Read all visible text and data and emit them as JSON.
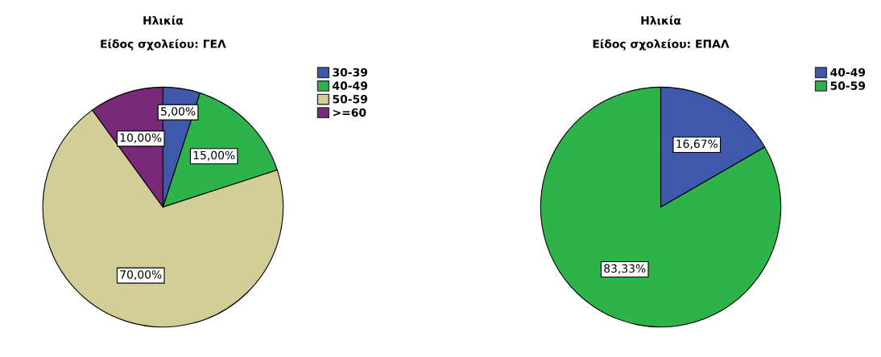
{
  "chart_data": [
    {
      "type": "pie",
      "title": "Ηλικία",
      "subtitle": "Είδος σχολείου: ΓΕΛ",
      "categories": [
        "30-39",
        "40-49",
        "50-59",
        ">=60"
      ],
      "values": [
        5,
        15,
        70,
        10
      ],
      "colors": [
        "#3e58ac",
        "#2db34a",
        "#d3ce97",
        "#79287a"
      ],
      "value_labels": [
        "5,00%",
        "15,00%",
        "70,00%",
        "10,00%"
      ],
      "legend": "top right"
    },
    {
      "type": "pie",
      "title": "Ηλικία",
      "subtitle": "Είδος σχολείου: ΕΠΑΛ",
      "categories": [
        "40-49",
        "50-59"
      ],
      "values": [
        16.67,
        83.33
      ],
      "colors": [
        "#3e58ac",
        "#2db34a"
      ],
      "value_labels": [
        "16,67%",
        "83,33%"
      ],
      "legend": "top right"
    }
  ]
}
